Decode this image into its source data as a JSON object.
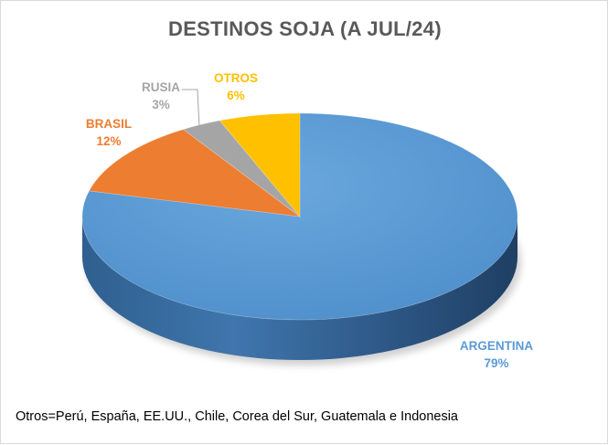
{
  "chart_data": {
    "type": "pie",
    "title": "DESTINOS SOJA (A JUL/24)",
    "slices": [
      {
        "label": "ARGENTINA",
        "pct_label": "79%",
        "value": 79,
        "color": "#5b9bd5"
      },
      {
        "label": "BRASIL",
        "pct_label": "12%",
        "value": 12,
        "color": "#ed7d31"
      },
      {
        "label": "RUSIA",
        "pct_label": "3%",
        "value": 3,
        "color": "#a5a5a5"
      },
      {
        "label": "OTROS",
        "pct_label": "6%",
        "value": 6,
        "color": "#ffc000"
      }
    ],
    "footnote": "Otros=Perú, España, EE.UU., Chile, Corea del Sur, Guatemala e Indonesia"
  }
}
